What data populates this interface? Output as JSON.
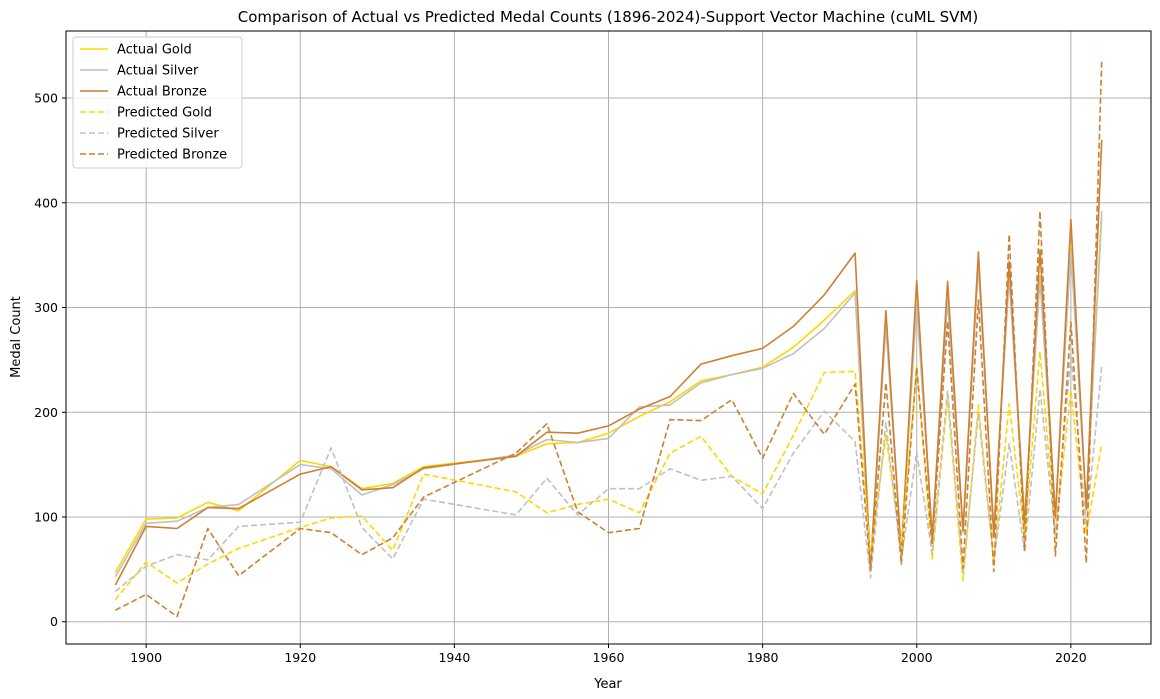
{
  "chart_data": {
    "type": "line",
    "title": "Comparison of Actual vs Predicted Medal Counts (1896-2024)-Support Vector Machine (cuML SVM)",
    "xlabel": "Year",
    "ylabel": "Medal Count",
    "xlim": [
      1889.6,
      2030.4
    ],
    "ylim": [
      -21.25,
      564
    ],
    "xticks": [
      1900,
      1920,
      1940,
      1960,
      1980,
      2000,
      2020
    ],
    "yticks": [
      0,
      100,
      200,
      300,
      400,
      500
    ],
    "grid": true,
    "legend_position": "top-left",
    "x": [
      1896,
      1900,
      1904,
      1908,
      1912,
      1920,
      1924,
      1928,
      1932,
      1936,
      1948,
      1952,
      1956,
      1960,
      1964,
      1968,
      1972,
      1976,
      1980,
      1984,
      1988,
      1992,
      1994,
      1996,
      1998,
      2000,
      2002,
      2004,
      2006,
      2008,
      2010,
      2012,
      2014,
      2016,
      2018,
      2020,
      2022,
      2024
    ],
    "series": [
      {
        "name": "Actual Gold",
        "color": "#FFD700",
        "style": "solid",
        "values": [
          47,
          98,
          99,
          114,
          106,
          154,
          148,
          127,
          132,
          148,
          158,
          170,
          171,
          180,
          196,
          210,
          230,
          236,
          243,
          262,
          288,
          316,
          50,
          287,
          66,
          308,
          82,
          313,
          85,
          342,
          88,
          333,
          98,
          330,
          102,
          360,
          110,
          385
        ]
      },
      {
        "name": "Actual Silver",
        "color": "#C0C0C0",
        "style": "solid",
        "values": [
          43,
          94,
          96,
          109,
          112,
          150,
          146,
          121,
          131,
          146,
          159,
          174,
          171,
          175,
          205,
          207,
          228,
          236,
          242,
          256,
          280,
          314,
          50,
          282,
          67,
          303,
          82,
          307,
          86,
          340,
          88,
          328,
          99,
          327,
          102,
          355,
          109,
          392
        ]
      },
      {
        "name": "Actual Bronze",
        "color": "#CD7F32",
        "style": "solid",
        "values": [
          35,
          91,
          89,
          109,
          108,
          141,
          148,
          126,
          128,
          147,
          158,
          181,
          180,
          187,
          203,
          215,
          246,
          254,
          261,
          282,
          312,
          352,
          51,
          297,
          64,
          326,
          79,
          325,
          87,
          353,
          81,
          344,
          91,
          355,
          99,
          384,
          107,
          460
        ]
      },
      {
        "name": "Predicted Gold",
        "color": "#FFD700",
        "style": "dashed",
        "values": [
          21,
          57,
          37,
          55,
          70,
          90,
          99,
          101,
          68,
          141,
          124,
          104,
          112,
          117,
          104,
          161,
          177,
          139,
          122,
          178,
          238,
          239,
          64,
          178,
          70,
          244,
          60,
          214,
          39,
          207,
          57,
          208,
          82,
          258,
          85,
          221,
          84,
          170
        ]
      },
      {
        "name": "Predicted Silver",
        "color": "#C0C0C0",
        "style": "dashed",
        "values": [
          29,
          53,
          64,
          59,
          91,
          95,
          166,
          90,
          60,
          117,
          102,
          137,
          102,
          127,
          127,
          146,
          135,
          139,
          108,
          161,
          201,
          172,
          42,
          190,
          59,
          162,
          65,
          221,
          47,
          199,
          57,
          170,
          67,
          222,
          82,
          256,
          91,
          244
        ]
      },
      {
        "name": "Predicted Bronze",
        "color": "#CD7F32",
        "style": "dashed",
        "values": [
          11,
          26,
          5,
          89,
          44,
          89,
          85,
          64,
          80,
          119,
          161,
          189,
          105,
          85,
          89,
          193,
          192,
          212,
          156,
          218,
          179,
          227,
          50,
          228,
          55,
          243,
          73,
          287,
          51,
          307,
          48,
          370,
          68,
          392,
          63,
          286,
          56,
          535
        ]
      }
    ]
  }
}
